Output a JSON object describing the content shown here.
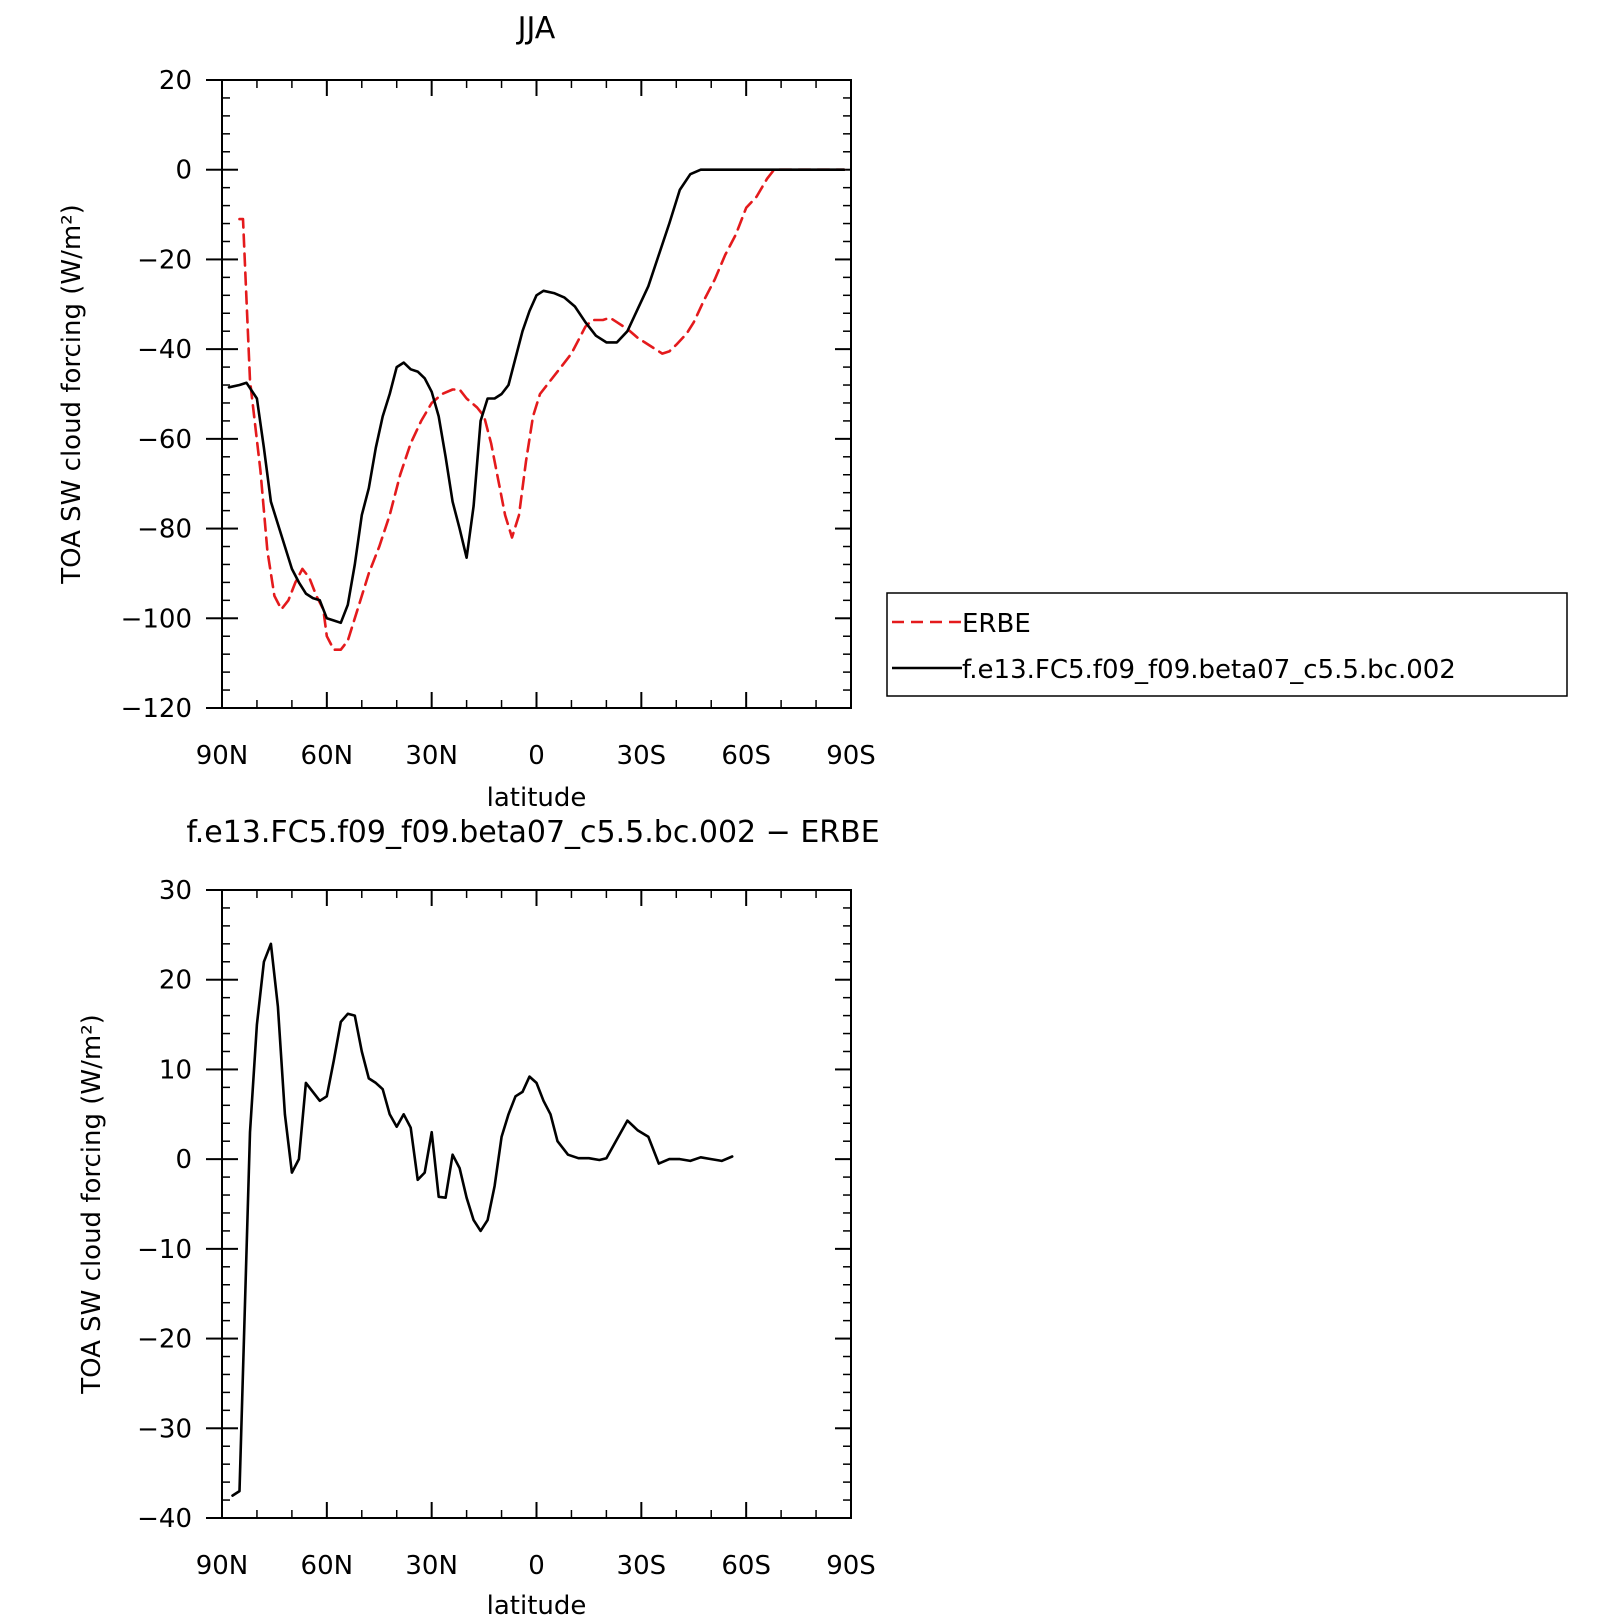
{
  "chart_data": [
    {
      "type": "line",
      "title": "JJA",
      "xlabel": "latitude",
      "ylabel": "TOA SW cloud forcing (W/m²)",
      "xlim": [
        90,
        -90
      ],
      "ylim": [
        -120,
        20
      ],
      "xticks": [
        90,
        60,
        30,
        0,
        -30,
        -60,
        -90
      ],
      "xtick_labels": [
        "90N",
        "60N",
        "30N",
        "0",
        "30S",
        "60S",
        "90S"
      ],
      "yticks": [
        20,
        0,
        -20,
        -40,
        -60,
        -80,
        -100,
        -120
      ],
      "ytick_labels": [
        "20",
        "0",
        "−20",
        "−40",
        "−60",
        "−80",
        "−100",
        "−120"
      ],
      "legend": "right",
      "series": [
        {
          "name": "ERBE",
          "color": "#e41a1c",
          "dash": true,
          "points": [
            [
              85,
              -11
            ],
            [
              84,
              -11
            ],
            [
              82,
              -47
            ],
            [
              79,
              -67
            ],
            [
              77,
              -85
            ],
            [
              75,
              -95
            ],
            [
              73,
              -98
            ],
            [
              71,
              -96
            ],
            [
              69,
              -92
            ],
            [
              67,
              -89
            ],
            [
              65,
              -91
            ],
            [
              63,
              -95
            ],
            [
              61,
              -98
            ],
            [
              60,
              -104
            ],
            [
              58,
              -107
            ],
            [
              56,
              -107
            ],
            [
              54,
              -105
            ],
            [
              52,
              -100
            ],
            [
              50,
              -95
            ],
            [
              48,
              -90
            ],
            [
              45,
              -84
            ],
            [
              42,
              -77
            ],
            [
              39,
              -68
            ],
            [
              36,
              -61
            ],
            [
              33,
              -56
            ],
            [
              30,
              -52
            ],
            [
              27,
              -50
            ],
            [
              24,
              -49
            ],
            [
              22,
              -49
            ],
            [
              20,
              -51
            ],
            [
              17,
              -53
            ],
            [
              15,
              -55
            ],
            [
              13,
              -61
            ],
            [
              11,
              -69
            ],
            [
              9,
              -77
            ],
            [
              7,
              -82
            ],
            [
              5,
              -77
            ],
            [
              3,
              -65
            ],
            [
              1,
              -55
            ],
            [
              -1,
              -50
            ],
            [
              -4,
              -47
            ],
            [
              -7,
              -44
            ],
            [
              -10,
              -41
            ],
            [
              -12,
              -38
            ],
            [
              -14,
              -35
            ],
            [
              -16,
              -33.5
            ],
            [
              -19,
              -33.5
            ],
            [
              -21,
              -33
            ],
            [
              -23,
              -34
            ],
            [
              -26,
              -35.5
            ],
            [
              -29,
              -37.5
            ],
            [
              -31,
              -38.5
            ],
            [
              -33,
              -39.5
            ],
            [
              -36,
              -41
            ],
            [
              -38,
              -40.5
            ],
            [
              -40,
              -39
            ],
            [
              -43,
              -36.5
            ],
            [
              -45,
              -34
            ],
            [
              -48,
              -29
            ],
            [
              -51,
              -24.5
            ],
            [
              -54,
              -19
            ],
            [
              -57,
              -14.5
            ],
            [
              -60,
              -8.5
            ],
            [
              -63,
              -6
            ],
            [
              -66,
              -2
            ],
            [
              -68,
              0
            ],
            [
              -70,
              0
            ],
            [
              -73,
              0
            ],
            [
              -76,
              0
            ],
            [
              -79,
              0
            ],
            [
              -82,
              0
            ],
            [
              -85,
              0
            ],
            [
              -88,
              0
            ]
          ]
        },
        {
          "name": "f.e13.FC5.f09_f09.beta07_c5.5.bc.002",
          "color": "#000000",
          "dash": false,
          "points": [
            [
              88,
              -48.5
            ],
            [
              85,
              -48
            ],
            [
              83,
              -47.5
            ],
            [
              80,
              -51
            ],
            [
              78,
              -62
            ],
            [
              76,
              -74
            ],
            [
              74,
              -79
            ],
            [
              72,
              -84
            ],
            [
              70,
              -89
            ],
            [
              68,
              -92
            ],
            [
              66,
              -94.5
            ],
            [
              64,
              -95.5
            ],
            [
              62,
              -96
            ],
            [
              60,
              -100
            ],
            [
              58,
              -100.5
            ],
            [
              56,
              -101
            ],
            [
              54,
              -97
            ],
            [
              52,
              -88
            ],
            [
              50,
              -77
            ],
            [
              48,
              -71
            ],
            [
              46,
              -62
            ],
            [
              44,
              -55
            ],
            [
              42,
              -50
            ],
            [
              40,
              -44
            ],
            [
              38,
              -43
            ],
            [
              36,
              -44.5
            ],
            [
              34,
              -45
            ],
            [
              32,
              -46.5
            ],
            [
              30,
              -49.5
            ],
            [
              28,
              -55
            ],
            [
              26,
              -64
            ],
            [
              24,
              -74
            ],
            [
              22,
              -80
            ],
            [
              20,
              -86.5
            ],
            [
              18,
              -75
            ],
            [
              16,
              -56
            ],
            [
              14,
              -51
            ],
            [
              12,
              -51
            ],
            [
              10,
              -50
            ],
            [
              8,
              -48
            ],
            [
              6,
              -42
            ],
            [
              4,
              -36
            ],
            [
              2,
              -31.5
            ],
            [
              0,
              -28
            ],
            [
              -2,
              -27
            ],
            [
              -5,
              -27.5
            ],
            [
              -8,
              -28.5
            ],
            [
              -11,
              -30.5
            ],
            [
              -14,
              -34
            ],
            [
              -17,
              -37
            ],
            [
              -20,
              -38.5
            ],
            [
              -23,
              -38.5
            ],
            [
              -26,
              -36
            ],
            [
              -29,
              -31
            ],
            [
              -32,
              -26
            ],
            [
              -35,
              -19
            ],
            [
              -38,
              -12
            ],
            [
              -41,
              -4.5
            ],
            [
              -44,
              -1
            ],
            [
              -47,
              0
            ],
            [
              -50,
              0
            ],
            [
              -55,
              0
            ],
            [
              -60,
              0
            ],
            [
              -65,
              0
            ],
            [
              -70,
              0
            ],
            [
              -75,
              0
            ],
            [
              -80,
              0
            ],
            [
              -88,
              0
            ]
          ]
        }
      ]
    },
    {
      "type": "line",
      "title": "f.e13.FC5.f09_f09.beta07_c5.5.bc.002 − ERBE",
      "xlabel": "latitude",
      "ylabel": "TOA SW cloud forcing (W/m²)",
      "xlim": [
        90,
        -90
      ],
      "ylim": [
        -40,
        30
      ],
      "xticks": [
        90,
        60,
        30,
        0,
        -30,
        -60,
        -90
      ],
      "xtick_labels": [
        "90N",
        "60N",
        "30N",
        "0",
        "30S",
        "60S",
        "90S"
      ],
      "yticks": [
        30,
        20,
        10,
        0,
        -10,
        -20,
        -30,
        -40
      ],
      "ytick_labels": [
        "30",
        "20",
        "10",
        "0",
        "−10",
        "−20",
        "−30",
        "−40"
      ],
      "series": [
        {
          "name": "",
          "color": "#000000",
          "dash": false,
          "points": [
            [
              87,
              -37.5
            ],
            [
              85,
              -37
            ],
            [
              82,
              3
            ],
            [
              80,
              15
            ],
            [
              78,
              22
            ],
            [
              76,
              24
            ],
            [
              74,
              17
            ],
            [
              72,
              5
            ],
            [
              70,
              -1.5
            ],
            [
              68,
              0
            ],
            [
              66,
              8.5
            ],
            [
              64,
              7.5
            ],
            [
              62,
              6.5
            ],
            [
              60,
              7
            ],
            [
              58,
              11
            ],
            [
              56,
              15.3
            ],
            [
              54,
              16.2
            ],
            [
              52,
              16
            ],
            [
              50,
              12
            ],
            [
              48,
              9
            ],
            [
              46,
              8.5
            ],
            [
              44,
              7.8
            ],
            [
              42,
              5
            ],
            [
              40,
              3.6
            ],
            [
              38,
              5
            ],
            [
              36,
              3.5
            ],
            [
              34,
              -2.3
            ],
            [
              32,
              -1.5
            ],
            [
              30,
              3
            ],
            [
              28,
              -4.2
            ],
            [
              26,
              -4.3
            ],
            [
              24,
              0.5
            ],
            [
              22,
              -1
            ],
            [
              20,
              -4.3
            ],
            [
              18,
              -6.8
            ],
            [
              16,
              -8
            ],
            [
              14,
              -6.8
            ],
            [
              12,
              -3
            ],
            [
              10,
              2.5
            ],
            [
              8,
              5
            ],
            [
              6,
              7
            ],
            [
              4,
              7.5
            ],
            [
              2,
              9.2
            ],
            [
              0,
              8.5
            ],
            [
              -2,
              6.5
            ],
            [
              -4,
              5
            ],
            [
              -6,
              2
            ],
            [
              -9,
              0.5
            ],
            [
              -12,
              0.1
            ],
            [
              -15,
              0.1
            ],
            [
              -18,
              -0.1
            ],
            [
              -20,
              0.1
            ],
            [
              -23,
              2.2
            ],
            [
              -26,
              4.3
            ],
            [
              -29,
              3.2
            ],
            [
              -32,
              2.5
            ],
            [
              -35,
              -0.5
            ],
            [
              -38,
              0
            ],
            [
              -41,
              0
            ],
            [
              -44,
              -0.2
            ],
            [
              -47,
              0.2
            ],
            [
              -50,
              0
            ],
            [
              -53,
              -0.2
            ],
            [
              -56,
              0.3
            ]
          ]
        }
      ]
    }
  ]
}
